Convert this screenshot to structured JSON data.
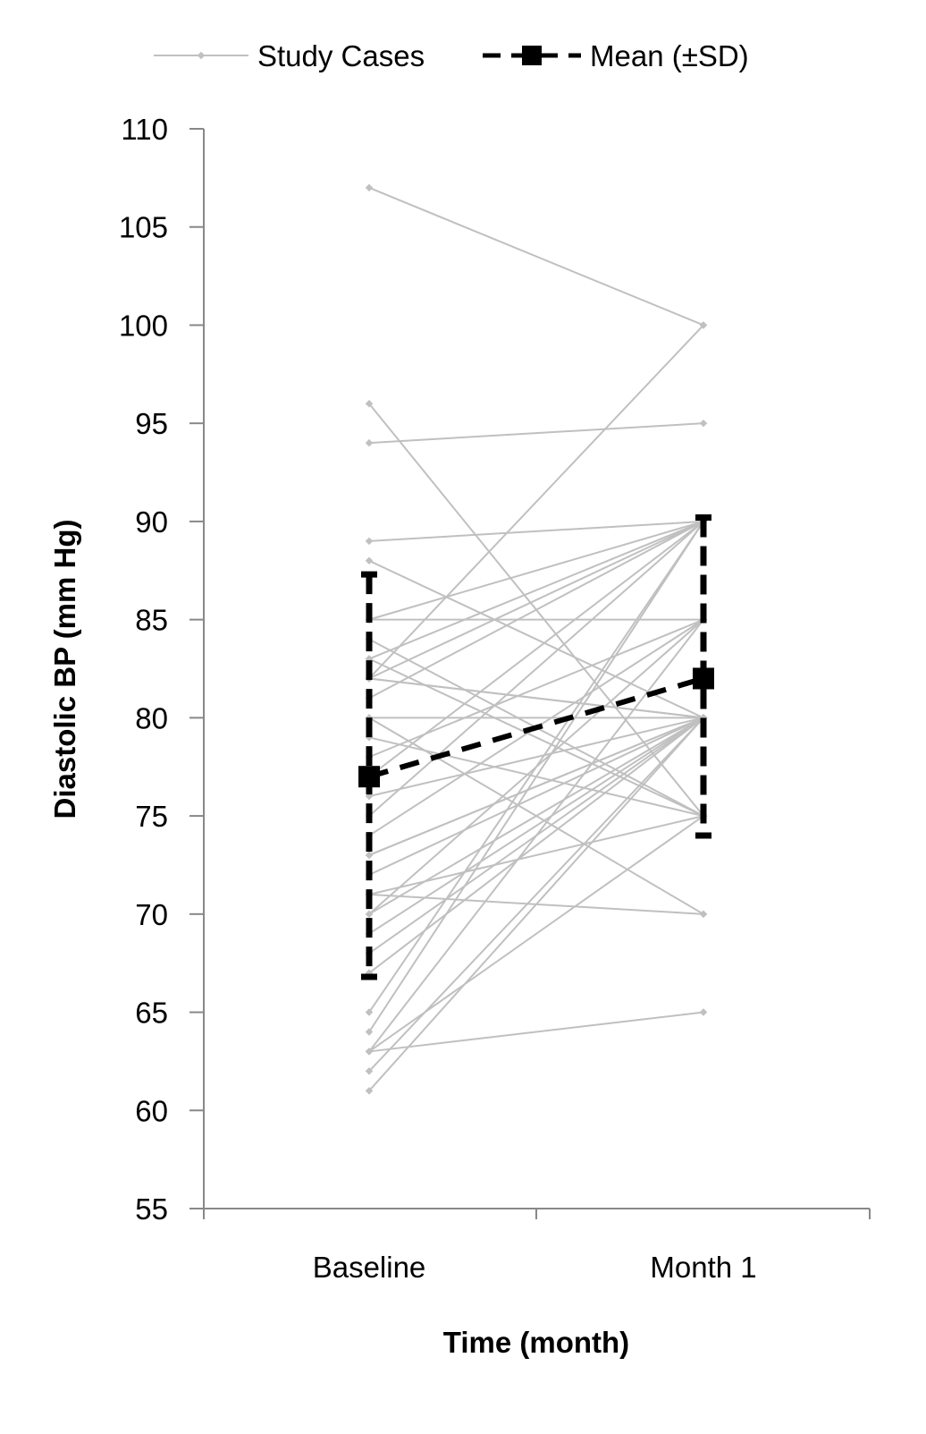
{
  "chart_data": {
    "type": "line",
    "title": "",
    "xlabel": "Time (month)",
    "ylabel": "Diastolic BP (mm Hg)",
    "categories": [
      "Baseline",
      "Month 1"
    ],
    "ylim": [
      55,
      110
    ],
    "yticks": [
      55,
      60,
      65,
      70,
      75,
      80,
      85,
      90,
      95,
      100,
      105,
      110
    ],
    "grid": false,
    "legend": {
      "placement": "top",
      "entries": [
        "Study Cases",
        "Mean (±SD)"
      ]
    },
    "colors": {
      "cases": "#c0c0c0",
      "mean": "#000000"
    },
    "cases": [
      [
        107,
        100
      ],
      [
        96,
        75
      ],
      [
        94,
        95
      ],
      [
        89,
        90
      ],
      [
        88,
        80
      ],
      [
        85,
        85
      ],
      [
        85,
        90
      ],
      [
        84,
        75
      ],
      [
        83,
        90
      ],
      [
        83,
        75
      ],
      [
        82,
        100
      ],
      [
        82,
        90
      ],
      [
        82,
        80
      ],
      [
        82,
        80
      ],
      [
        81,
        90
      ],
      [
        80,
        80
      ],
      [
        80,
        70
      ],
      [
        79,
        75
      ],
      [
        78,
        85
      ],
      [
        77,
        90
      ],
      [
        76,
        80
      ],
      [
        75,
        90
      ],
      [
        74,
        85
      ],
      [
        73,
        80
      ],
      [
        73,
        80
      ],
      [
        72,
        80
      ],
      [
        71,
        75
      ],
      [
        71,
        70
      ],
      [
        70,
        85
      ],
      [
        70,
        80
      ],
      [
        69,
        80
      ],
      [
        68,
        80
      ],
      [
        67,
        80
      ],
      [
        65,
        90
      ],
      [
        64,
        90
      ],
      [
        63,
        75
      ],
      [
        63,
        65
      ],
      [
        63,
        85
      ],
      [
        62,
        80
      ],
      [
        61,
        80
      ]
    ],
    "mean": {
      "name": "Mean (±SD)",
      "values": [
        77,
        82
      ],
      "sd_upper": [
        87.3,
        90.2
      ],
      "sd_lower": [
        66.8,
        74.0
      ]
    }
  }
}
